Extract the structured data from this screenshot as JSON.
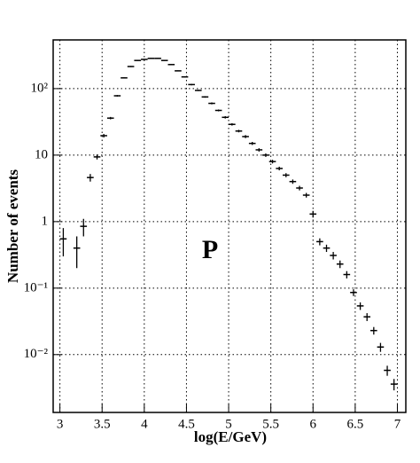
{
  "chart_data": {
    "type": "histogram",
    "x_label": "log(E/GeV)",
    "y_label": "Number of events",
    "annotation": "P",
    "bins": [
      3.0,
      3.08,
      3.16,
      3.24,
      3.32,
      3.4,
      3.48,
      3.56,
      3.64,
      3.72,
      3.8,
      3.88,
      3.96,
      4.04,
      4.12,
      4.2,
      4.28,
      4.36,
      4.44,
      4.52,
      4.6,
      4.68,
      4.76,
      4.84,
      4.92,
      5.0,
      5.08,
      5.16,
      5.24,
      5.32,
      5.4,
      5.48,
      5.56,
      5.64,
      5.72,
      5.8,
      5.88,
      5.96,
      6.04,
      6.12,
      6.2,
      6.28,
      6.36,
      6.44,
      6.52,
      6.6,
      6.68,
      6.76,
      6.84,
      6.92,
      7.0
    ],
    "values": [
      0.55,
      null,
      0.4,
      0.85,
      4.6,
      9.4,
      19.6,
      36,
      78,
      145,
      215,
      265,
      275,
      285,
      285,
      265,
      230,
      185,
      150,
      115,
      94,
      75,
      60,
      47,
      37,
      29,
      23,
      19,
      15,
      12,
      10,
      8,
      6.3,
      5,
      4,
      3.2,
      2.5,
      1.3,
      0.5,
      0.4,
      0.31,
      0.23,
      0.16,
      0.086,
      0.054,
      0.037,
      0.023,
      0.013,
      0.0058,
      0.0036
    ],
    "errors": [
      0.25,
      null,
      0.2,
      0.25,
      0.6,
      0.8,
      1.2,
      1.5,
      2,
      3,
      4,
      4,
      4,
      4,
      4,
      4,
      4,
      3,
      3,
      3,
      2,
      2,
      2,
      1.5,
      1.5,
      1.2,
      1,
      1,
      0.8,
      0.7,
      0.6,
      0.5,
      0.4,
      0.35,
      0.3,
      0.25,
      0.2,
      0.15,
      0.06,
      0.05,
      0.04,
      0.03,
      0.02,
      0.01,
      0.007,
      0.005,
      0.003,
      0.002,
      0.001,
      0.0007
    ],
    "color": "#000000",
    "xlim": [
      2.92,
      7.1
    ],
    "ylim": [
      0.00135,
      540
    ],
    "log_y": true,
    "grid": true,
    "xticks": [
      3,
      3.5,
      4,
      4.5,
      5,
      5.5,
      6,
      6.5,
      7
    ],
    "yticks": [
      {
        "value": 0.01,
        "label": "10⁻²"
      },
      {
        "value": 0.1,
        "label": "10⁻¹"
      },
      1,
      10,
      {
        "value": 100,
        "label": "10²"
      }
    ]
  }
}
